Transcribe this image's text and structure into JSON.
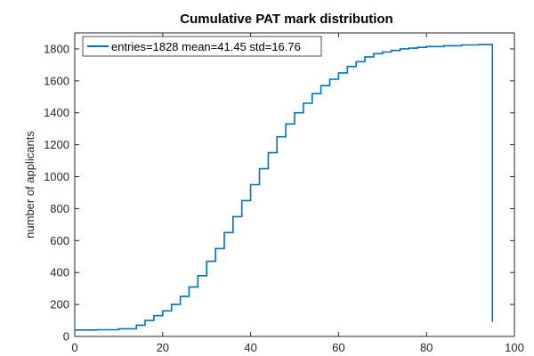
{
  "chart_data": {
    "type": "line",
    "title": "Cumulative PAT mark distribution",
    "xlabel": "",
    "ylabel": "number of applicants",
    "xlim": [
      0,
      100
    ],
    "ylim": [
      0,
      1900
    ],
    "xticks": [
      0,
      20,
      40,
      60,
      80,
      100
    ],
    "yticks": [
      0,
      200,
      400,
      600,
      800,
      1000,
      1200,
      1400,
      1600,
      1800
    ],
    "grid": false,
    "legend_position": "top-left",
    "line_color": "#0072BD",
    "series": [
      {
        "name": "entries=1828 mean=41.45 std=16.76",
        "x": [
          0,
          5,
          10,
          14,
          16,
          18,
          20,
          22,
          24,
          26,
          28,
          30,
          32,
          34,
          36,
          38,
          40,
          42,
          44,
          46,
          48,
          50,
          52,
          54,
          56,
          58,
          60,
          62,
          64,
          66,
          68,
          70,
          72,
          74,
          76,
          78,
          80,
          84,
          88,
          92,
          94,
          95,
          95
        ],
        "y": [
          40,
          42,
          48,
          70,
          100,
          130,
          160,
          200,
          250,
          310,
          380,
          470,
          550,
          650,
          750,
          850,
          950,
          1050,
          1150,
          1250,
          1330,
          1400,
          1460,
          1520,
          1570,
          1610,
          1650,
          1690,
          1720,
          1750,
          1770,
          1780,
          1790,
          1800,
          1805,
          1810,
          1815,
          1820,
          1825,
          1827,
          1828,
          1828,
          90
        ]
      }
    ]
  }
}
